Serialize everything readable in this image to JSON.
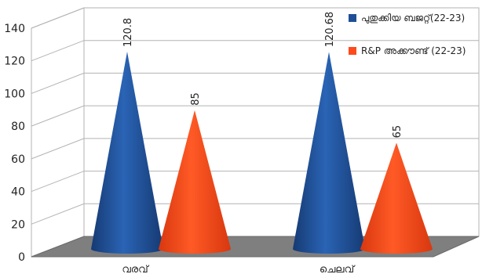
{
  "chart_data": {
    "type": "bar",
    "style": "3d-cone",
    "categories": [
      "വരവ്",
      "ചെലവ്"
    ],
    "series": [
      {
        "name": "പുതുക്കിയ ബജറ്റ്(22-23)",
        "values": [
          120.8,
          120.68
        ],
        "labels": [
          "120.8",
          "120.68"
        ],
        "color": "#1f4e96"
      },
      {
        "name": "R&P അക്കൗണ്ട് (22-23)",
        "values": [
          85,
          65
        ],
        "labels": [
          "85",
          "65"
        ],
        "color": "#ff4a1c"
      }
    ],
    "yticks": [
      "0",
      "20",
      "40",
      "60",
      "80",
      "100",
      "120",
      "140"
    ],
    "ylim": [
      0,
      140
    ],
    "grid": true,
    "legend": "top-right",
    "title": "",
    "xlabel": "",
    "ylabel": ""
  }
}
